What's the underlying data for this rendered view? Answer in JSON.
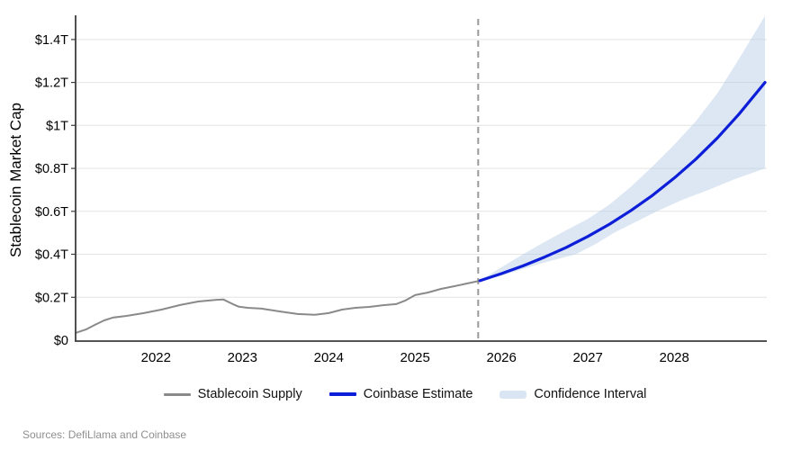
{
  "figure": {
    "y_axis_title": "Stablecoin Market Cap",
    "sources": "Sources: DefiLlama and Coinbase"
  },
  "legend": [
    {
      "label": "Stablecoin Supply",
      "type": "line",
      "color": "#8a8a8a"
    },
    {
      "label": "Coinbase Estimate",
      "type": "line",
      "color": "#0d1ed9"
    },
    {
      "label": "Confidence Interval",
      "type": "band",
      "color": "#d9e5f2"
    }
  ],
  "chart_data": {
    "type": "line",
    "title": "",
    "xlabel": "",
    "ylabel": "Stablecoin Market Cap",
    "x_domain": [
      2021.07,
      2029.05
    ],
    "ylim": [
      0,
      1.5
    ],
    "grid": "horizontal",
    "legend_position": "bottom",
    "divider_x": 2025.73,
    "x_ticks": [
      {
        "v": 2022,
        "label": "2022"
      },
      {
        "v": 2023,
        "label": "2023"
      },
      {
        "v": 2024,
        "label": "2024"
      },
      {
        "v": 2025,
        "label": "2025"
      },
      {
        "v": 2026,
        "label": "2026"
      },
      {
        "v": 2027,
        "label": "2027"
      },
      {
        "v": 2028,
        "label": "2028"
      }
    ],
    "y_ticks": [
      {
        "v": 0.0,
        "label": "$0"
      },
      {
        "v": 0.2,
        "label": "$0.2T"
      },
      {
        "v": 0.4,
        "label": "$0.4T"
      },
      {
        "v": 0.6,
        "label": "$0.6T"
      },
      {
        "v": 0.8,
        "label": "$0.8T"
      },
      {
        "v": 1.0,
        "label": "$1T"
      },
      {
        "v": 1.2,
        "label": "$1.2T"
      },
      {
        "v": 1.4,
        "label": "$1.4T"
      }
    ],
    "colors": {
      "history": "#8a8a8a",
      "forecast": "#0d1ed9",
      "ci_fill": "rgba(177,201,228,0.45)",
      "grid": "#e4e4e4",
      "axis": "#3c3c3c",
      "divider": "#9a9a9a",
      "tick_text": "#000000"
    },
    "series": [
      {
        "name": "Stablecoin Supply",
        "role": "history",
        "units": "USD trillions",
        "points": [
          [
            2021.07,
            0.034
          ],
          [
            2021.19,
            0.05
          ],
          [
            2021.29,
            0.071
          ],
          [
            2021.4,
            0.092
          ],
          [
            2021.5,
            0.105
          ],
          [
            2021.66,
            0.113
          ],
          [
            2021.86,
            0.126
          ],
          [
            2022.07,
            0.143
          ],
          [
            2022.28,
            0.164
          ],
          [
            2022.49,
            0.18
          ],
          [
            2022.7,
            0.188
          ],
          [
            2022.78,
            0.19
          ],
          [
            2022.89,
            0.168
          ],
          [
            2022.96,
            0.156
          ],
          [
            2023.06,
            0.151
          ],
          [
            2023.22,
            0.147
          ],
          [
            2023.43,
            0.134
          ],
          [
            2023.64,
            0.122
          ],
          [
            2023.84,
            0.118
          ],
          [
            2024.0,
            0.126
          ],
          [
            2024.16,
            0.143
          ],
          [
            2024.31,
            0.151
          ],
          [
            2024.47,
            0.155
          ],
          [
            2024.63,
            0.163
          ],
          [
            2024.78,
            0.168
          ],
          [
            2024.89,
            0.185
          ],
          [
            2025.0,
            0.21
          ],
          [
            2025.15,
            0.222
          ],
          [
            2025.3,
            0.239
          ],
          [
            2025.46,
            0.252
          ],
          [
            2025.6,
            0.264
          ],
          [
            2025.73,
            0.275
          ]
        ]
      },
      {
        "name": "Coinbase Estimate",
        "role": "forecast",
        "units": "USD trillions",
        "points": [
          [
            2025.75,
            0.277
          ],
          [
            2026.0,
            0.31
          ],
          [
            2026.25,
            0.346
          ],
          [
            2026.5,
            0.387
          ],
          [
            2026.75,
            0.432
          ],
          [
            2027.0,
            0.483
          ],
          [
            2027.25,
            0.54
          ],
          [
            2027.5,
            0.604
          ],
          [
            2027.75,
            0.675
          ],
          [
            2028.0,
            0.755
          ],
          [
            2028.25,
            0.843
          ],
          [
            2028.5,
            0.942
          ],
          [
            2028.75,
            1.053
          ],
          [
            2029.05,
            1.2
          ]
        ]
      },
      {
        "name": "Confidence Interval Upper",
        "role": "ci_upper",
        "units": "USD trillions",
        "points": [
          [
            2025.75,
            0.277
          ],
          [
            2026.0,
            0.34
          ],
          [
            2026.25,
            0.4
          ],
          [
            2026.5,
            0.458
          ],
          [
            2026.75,
            0.512
          ],
          [
            2027.0,
            0.565
          ],
          [
            2027.25,
            0.632
          ],
          [
            2027.5,
            0.715
          ],
          [
            2027.75,
            0.81
          ],
          [
            2028.0,
            0.91
          ],
          [
            2028.25,
            1.02
          ],
          [
            2028.5,
            1.15
          ],
          [
            2028.75,
            1.31
          ],
          [
            2029.05,
            1.51
          ]
        ]
      },
      {
        "name": "Confidence Interval Lower",
        "role": "ci_lower",
        "units": "USD trillions",
        "points": [
          [
            2025.75,
            0.277
          ],
          [
            2026.0,
            0.3
          ],
          [
            2026.25,
            0.332
          ],
          [
            2026.5,
            0.362
          ],
          [
            2026.86,
            0.4
          ],
          [
            2027.1,
            0.45
          ],
          [
            2027.3,
            0.5
          ],
          [
            2027.55,
            0.55
          ],
          [
            2027.8,
            0.6
          ],
          [
            2028.1,
            0.655
          ],
          [
            2028.4,
            0.7
          ],
          [
            2028.7,
            0.75
          ],
          [
            2029.05,
            0.8
          ]
        ]
      }
    ]
  }
}
